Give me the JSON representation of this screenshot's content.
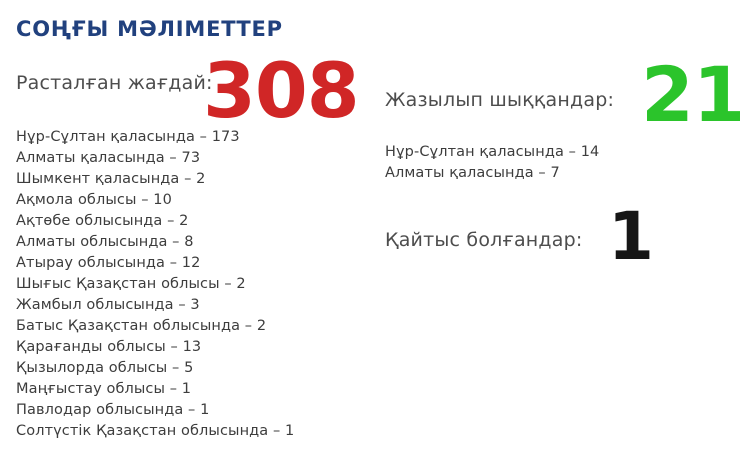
{
  "title": "СОҢҒЫ МӘЛІМЕТТЕР",
  "colors": {
    "title_blue": "#21417e",
    "confirmed_red": "#d02626",
    "recovered_green": "#2bc42b",
    "deaths_black": "#161616"
  },
  "confirmed": {
    "label": "Расталған жағдай:",
    "value": "308",
    "regions": [
      "Нұр-Сұлтан қаласында – 173",
      "Алматы қаласында – 73",
      "Шымкент қаласында – 2",
      "Ақмола облысы – 10",
      "Ақтөбе облысында – 2",
      "Алматы облысында – 8",
      "Атырау облысында – 12",
      "Шығыс Қазақстан облысы – 2",
      "Жамбыл облысында – 3",
      "Батыс Қазақстан облысында – 2",
      "Қарағанды облысы – 13",
      "Қызылорда облысы – 5",
      "Маңғыстау облысы – 1",
      "Павлодар облысында – 1",
      "Солтүстік Қазақстан облысында – 1"
    ]
  },
  "recovered": {
    "label": "Жазылып шыққандар:",
    "value": "21",
    "regions": [
      "Нұр-Сұлтан қаласында – 14",
      "Алматы қаласында – 7"
    ]
  },
  "deaths": {
    "label": "Қайтыс болғандар:",
    "value": "1"
  }
}
